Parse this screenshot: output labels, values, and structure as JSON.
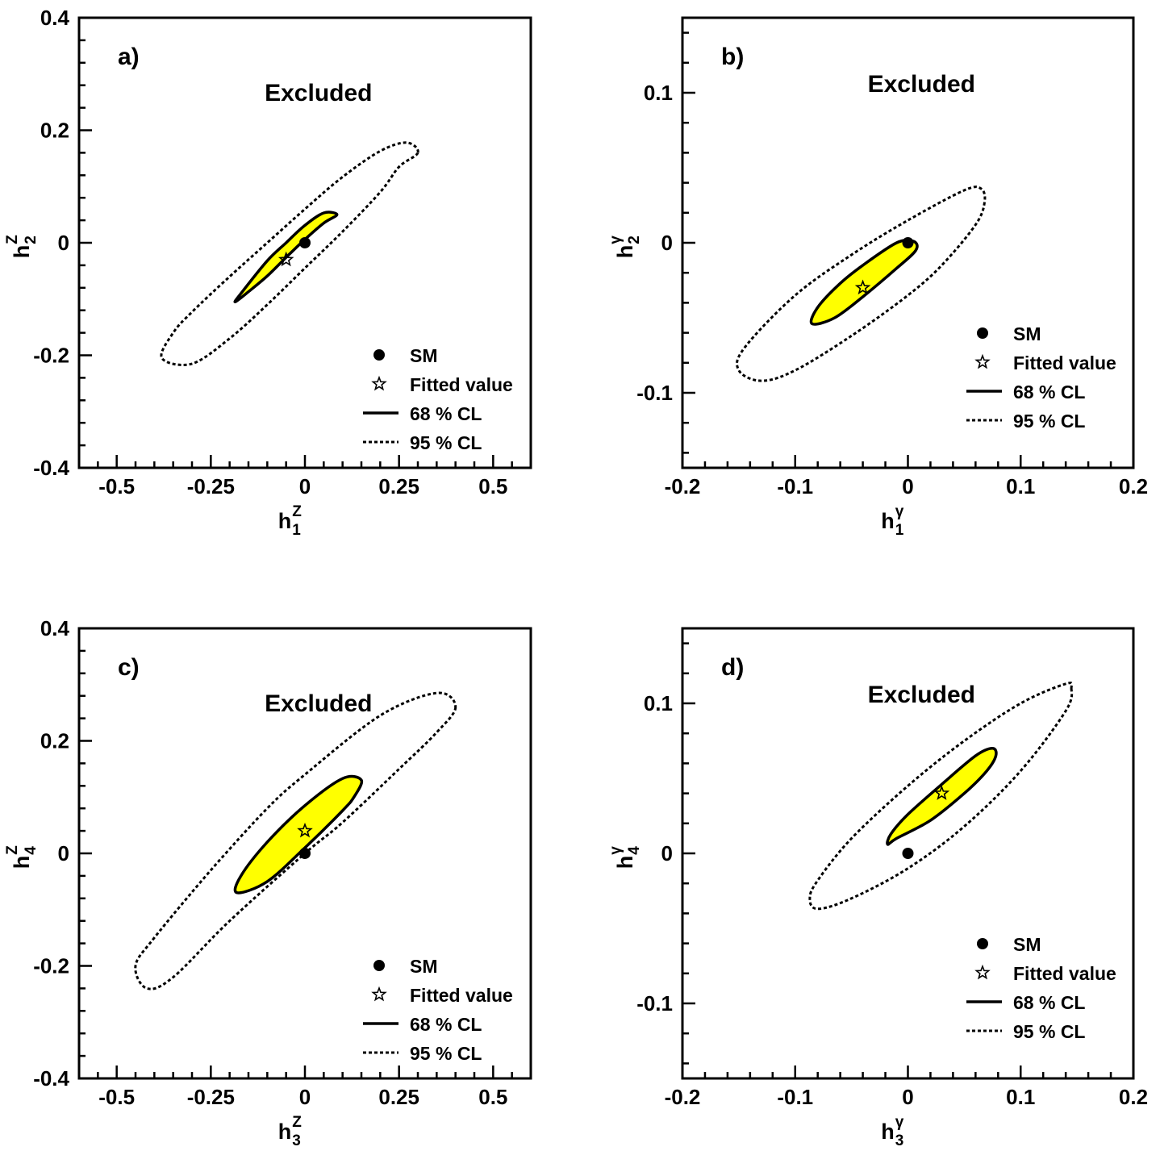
{
  "chart_data": [
    {
      "type": "contour",
      "panel_label": "a)",
      "region_label": "Excluded",
      "xlabel": {
        "base": "h",
        "sup": "Z",
        "sub": "1"
      },
      "ylabel": {
        "base": "h",
        "sup": "Z",
        "sub": "2"
      },
      "xlim": [
        -0.6,
        0.6
      ],
      "ylim": [
        -0.4,
        0.4
      ],
      "xticks": [
        -0.5,
        -0.25,
        0,
        0.25,
        0.5
      ],
      "xtick_labels": [
        "-0.5",
        "-0.25",
        "0",
        "0.25",
        "0.5"
      ],
      "yticks": [
        -0.4,
        -0.2,
        0,
        0.2,
        0.4
      ],
      "ytick_labels": [
        "-0.4",
        "-0.2",
        "0",
        "0.2",
        "0.4"
      ],
      "sm_point": [
        0,
        0
      ],
      "fitted_value": [
        -0.05,
        -0.03
      ],
      "cl68": {
        "points": [
          [
            0.085,
            0.05
          ],
          [
            0.05,
            0.035
          ],
          [
            0.0,
            0.006
          ],
          [
            -0.05,
            -0.026
          ],
          [
            -0.1,
            -0.059
          ],
          [
            -0.15,
            -0.087
          ],
          [
            -0.185,
            -0.105
          ],
          [
            -0.17,
            -0.09
          ],
          [
            -0.1,
            -0.032
          ],
          [
            -0.05,
            0.0
          ],
          [
            0.0,
            0.031
          ],
          [
            0.05,
            0.053
          ],
          [
            0.085,
            0.05
          ]
        ]
      },
      "cl95": {
        "points": [
          [
            0.3,
            0.16
          ],
          [
            0.25,
            0.135
          ],
          [
            0.2,
            0.09
          ],
          [
            0.1,
            0.02
          ],
          [
            0.0,
            -0.045
          ],
          [
            -0.1,
            -0.11
          ],
          [
            -0.2,
            -0.17
          ],
          [
            -0.3,
            -0.215
          ],
          [
            -0.38,
            -0.205
          ],
          [
            -0.35,
            -0.16
          ],
          [
            -0.3,
            -0.123
          ],
          [
            -0.2,
            -0.06
          ],
          [
            -0.1,
            0.0
          ],
          [
            0.0,
            0.06
          ],
          [
            0.1,
            0.117
          ],
          [
            0.2,
            0.163
          ],
          [
            0.27,
            0.178
          ],
          [
            0.3,
            0.16
          ]
        ]
      },
      "legend": {
        "sm": "SM",
        "fit": "Fitted value",
        "cl68": "68 % CL",
        "cl95": "95 % CL"
      }
    },
    {
      "type": "contour",
      "panel_label": "b)",
      "region_label": "Excluded",
      "xlabel": {
        "base": "h",
        "sup": "γ",
        "sub": "1"
      },
      "ylabel": {
        "base": "h",
        "sup": "γ",
        "sub": "2"
      },
      "xlim": [
        -0.2,
        0.2
      ],
      "ylim": [
        -0.15,
        0.15
      ],
      "xticks": [
        -0.2,
        -0.1,
        0,
        0.1,
        0.2
      ],
      "xtick_labels": [
        "-0.2",
        "-0.1",
        "0",
        "0.1",
        "0.2"
      ],
      "yticks": [
        -0.1,
        0,
        0.1
      ],
      "ytick_labels": [
        "-0.1",
        "0",
        "0.1"
      ],
      "sm_point": [
        0,
        0
      ],
      "fitted_value": [
        -0.04,
        -0.03
      ],
      "cl68": {
        "points": [
          [
            0.007,
            -0.005
          ],
          [
            -0.01,
            -0.017
          ],
          [
            -0.04,
            -0.036
          ],
          [
            -0.065,
            -0.05
          ],
          [
            -0.085,
            -0.054
          ],
          [
            -0.08,
            -0.043
          ],
          [
            -0.06,
            -0.027
          ],
          [
            -0.04,
            -0.015
          ],
          [
            -0.01,
            0.0
          ],
          [
            0.005,
            0.001
          ],
          [
            0.007,
            -0.005
          ]
        ]
      },
      "cl95": {
        "points": [
          [
            0.068,
            0.027
          ],
          [
            0.06,
            0.012
          ],
          [
            0.03,
            -0.015
          ],
          [
            0.0,
            -0.035
          ],
          [
            -0.05,
            -0.062
          ],
          [
            -0.1,
            -0.085
          ],
          [
            -0.13,
            -0.092
          ],
          [
            -0.15,
            -0.085
          ],
          [
            -0.145,
            -0.07
          ],
          [
            -0.1,
            -0.035
          ],
          [
            -0.05,
            -0.008
          ],
          [
            0.0,
            0.015
          ],
          [
            0.05,
            0.035
          ],
          [
            0.065,
            0.036
          ],
          [
            0.068,
            0.027
          ]
        ]
      },
      "legend": {
        "sm": "SM",
        "fit": "Fitted value",
        "cl68": "68 % CL",
        "cl95": "95 % CL"
      }
    },
    {
      "type": "contour",
      "panel_label": "c)",
      "region_label": "Excluded",
      "xlabel": {
        "base": "h",
        "sup": "Z",
        "sub": "3"
      },
      "ylabel": {
        "base": "h",
        "sup": "Z",
        "sub": "4"
      },
      "xlim": [
        -0.6,
        0.6
      ],
      "ylim": [
        -0.4,
        0.4
      ],
      "xticks": [
        -0.5,
        -0.25,
        0,
        0.25,
        0.5
      ],
      "xtick_labels": [
        "-0.5",
        "-0.25",
        "0",
        "0.25",
        "0.5"
      ],
      "yticks": [
        -0.4,
        -0.2,
        0,
        0.2,
        0.4
      ],
      "ytick_labels": [
        "-0.4",
        "-0.2",
        "0",
        "0.2",
        "0.4"
      ],
      "sm_point": [
        0,
        0
      ],
      "fitted_value": [
        0,
        0.04
      ],
      "cl68": {
        "points": [
          [
            0.15,
            0.13
          ],
          [
            0.13,
            0.1
          ],
          [
            0.1,
            0.076
          ],
          [
            0.0,
            0.01
          ],
          [
            -0.1,
            -0.05
          ],
          [
            -0.18,
            -0.07
          ],
          [
            -0.17,
            -0.04
          ],
          [
            -0.1,
            0.02
          ],
          [
            0.0,
            0.085
          ],
          [
            0.1,
            0.133
          ],
          [
            0.15,
            0.13
          ]
        ]
      },
      "cl95": {
        "points": [
          [
            0.4,
            0.26
          ],
          [
            0.35,
            0.215
          ],
          [
            0.25,
            0.15
          ],
          [
            0.1,
            0.055
          ],
          [
            0.0,
            0.0
          ],
          [
            -0.2,
            -0.12
          ],
          [
            -0.35,
            -0.22
          ],
          [
            -0.42,
            -0.24
          ],
          [
            -0.45,
            -0.2
          ],
          [
            -0.4,
            -0.15
          ],
          [
            -0.25,
            -0.03
          ],
          [
            -0.1,
            0.08
          ],
          [
            0.0,
            0.14
          ],
          [
            0.2,
            0.245
          ],
          [
            0.35,
            0.285
          ],
          [
            0.4,
            0.26
          ]
        ]
      },
      "legend": {
        "sm": "SM",
        "fit": "Fitted value",
        "cl68": "68 % CL",
        "cl95": "95 % CL"
      }
    },
    {
      "type": "contour",
      "panel_label": "d)",
      "region_label": "Excluded",
      "xlabel": {
        "base": "h",
        "sup": "γ",
        "sub": "3"
      },
      "ylabel": {
        "base": "h",
        "sup": "γ",
        "sub": "4"
      },
      "xlim": [
        -0.2,
        0.2
      ],
      "ylim": [
        -0.15,
        0.15
      ],
      "xticks": [
        -0.2,
        -0.1,
        0,
        0.1,
        0.2
      ],
      "xtick_labels": [
        "-0.2",
        "-0.1",
        "0",
        "0.1",
        "0.2"
      ],
      "yticks": [
        -0.1,
        0,
        0.1
      ],
      "ytick_labels": [
        "-0.1",
        "0",
        "0.1"
      ],
      "sm_point": [
        0,
        0
      ],
      "fitted_value": [
        0.03,
        0.04
      ],
      "cl68": {
        "points": [
          [
            0.078,
            0.065
          ],
          [
            0.07,
            0.055
          ],
          [
            0.05,
            0.04
          ],
          [
            0.02,
            0.022
          ],
          [
            -0.01,
            0.01
          ],
          [
            -0.018,
            0.006
          ],
          [
            -0.015,
            0.013
          ],
          [
            0.0,
            0.026
          ],
          [
            0.03,
            0.046
          ],
          [
            0.06,
            0.065
          ],
          [
            0.075,
            0.07
          ],
          [
            0.078,
            0.065
          ]
        ]
      },
      "cl95": {
        "points": [
          [
            0.145,
            0.11
          ],
          [
            0.14,
            0.095
          ],
          [
            0.1,
            0.055
          ],
          [
            0.05,
            0.018
          ],
          [
            0.0,
            -0.01
          ],
          [
            -0.05,
            -0.03
          ],
          [
            -0.08,
            -0.037
          ],
          [
            -0.087,
            -0.03
          ],
          [
            -0.08,
            -0.018
          ],
          [
            -0.05,
            0.01
          ],
          [
            0.0,
            0.045
          ],
          [
            0.05,
            0.075
          ],
          [
            0.1,
            0.1
          ],
          [
            0.14,
            0.113
          ],
          [
            0.145,
            0.11
          ]
        ]
      },
      "legend": {
        "sm": "SM",
        "fit": "Fitted value",
        "cl68": "68 % CL",
        "cl95": "95 % CL"
      }
    }
  ],
  "colors": {
    "cl68_fill": "#ffff00",
    "line": "#000000",
    "background": "#ffffff"
  }
}
